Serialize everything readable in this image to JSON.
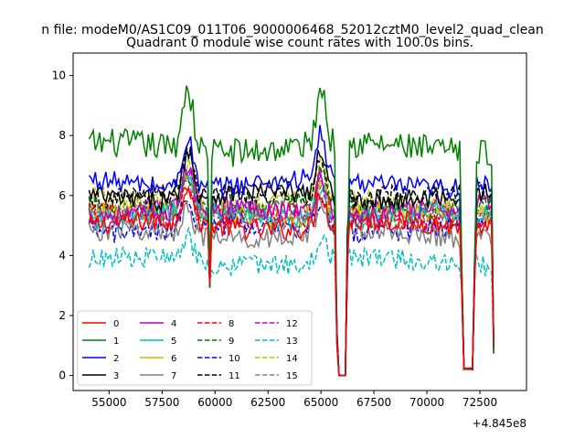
{
  "figure": {
    "suptitle": "n file: modeM0/AS1C09_011T06_9000006468_52012cztM0_level2_quad_clean"
  },
  "chart_data": {
    "type": "line",
    "title": "Quadrant 0 module wise count rates with 100.0s bins.",
    "xlabel": "",
    "ylabel": "",
    "x_offset_label": "+4.845e8",
    "xlim": [
      53300,
      74700
    ],
    "ylim": [
      -0.5,
      10.75
    ],
    "xticks": [
      55000,
      57500,
      60000,
      62500,
      65000,
      67500,
      70000,
      72500
    ],
    "xtick_labels": [
      "55000",
      "57500",
      "60000",
      "62500",
      "65000",
      "67500",
      "70000",
      "72500"
    ],
    "yticks": [
      0,
      2,
      4,
      6,
      8,
      10
    ],
    "ytick_labels": [
      "0",
      "2",
      "4",
      "6",
      "8",
      "10"
    ],
    "grid": false,
    "legend_position": "lower-left",
    "legend_columns": 4,
    "x_sampling": {
      "start": 54050,
      "step": 100,
      "gap1": [
        65800,
        66200
      ],
      "gap2": [
        71700,
        72200
      ],
      "end": 73150
    },
    "series": [
      {
        "name": "0",
        "color": "#ff0000",
        "linestyle": "solid",
        "base": 5.0
      },
      {
        "name": "1",
        "color": "#008000",
        "linestyle": "solid",
        "base": 7.6
      },
      {
        "name": "2",
        "color": "#0000ff",
        "linestyle": "solid",
        "base": 6.4
      },
      {
        "name": "3",
        "color": "#000000",
        "linestyle": "solid",
        "base": 6.0
      },
      {
        "name": "4",
        "color": "#bf00bf",
        "linestyle": "solid",
        "base": 5.5
      },
      {
        "name": "5",
        "color": "#00bfbf",
        "linestyle": "solid",
        "base": 5.3
      },
      {
        "name": "6",
        "color": "#bfbf00",
        "linestyle": "solid",
        "base": 5.4
      },
      {
        "name": "7",
        "color": "#808080",
        "linestyle": "solid",
        "base": 4.7
      },
      {
        "name": "8",
        "color": "#ff0000",
        "linestyle": "dashed",
        "base": 5.3
      },
      {
        "name": "9",
        "color": "#008000",
        "linestyle": "dashed",
        "base": 5.6
      },
      {
        "name": "10",
        "color": "#0000ff",
        "linestyle": "dashed",
        "base": 4.9
      },
      {
        "name": "11",
        "color": "#000000",
        "linestyle": "dashed",
        "base": 6.0
      },
      {
        "name": "12",
        "color": "#bf00bf",
        "linestyle": "dashed",
        "base": 5.4
      },
      {
        "name": "13",
        "color": "#00bfbf",
        "linestyle": "dashed",
        "base": 3.8
      },
      {
        "name": "14",
        "color": "#bfbf00",
        "linestyle": "dashed",
        "base": 5.8
      },
      {
        "name": "15",
        "color": "#808080",
        "linestyle": "dashed",
        "base": 5.2
      }
    ]
  }
}
